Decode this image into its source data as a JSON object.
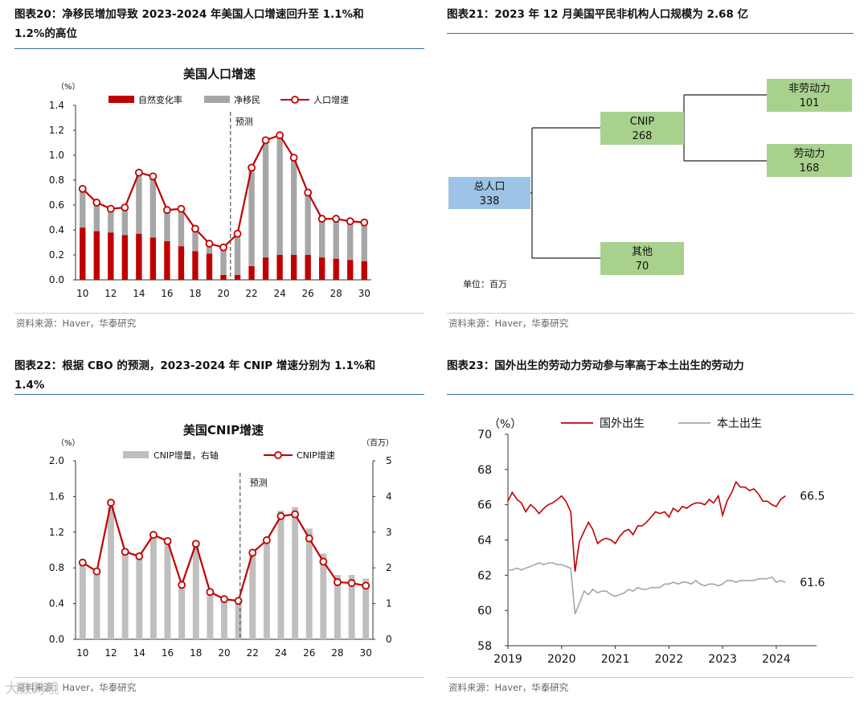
{
  "panels": {
    "p20": {
      "title_line1": "图表20：净移民增加导致 2023-2024 年美国人口增速回升至 1.1%和",
      "title_line2": "1.2%的高位",
      "source": "资料来源：Haver，华泰研究"
    },
    "p21": {
      "title_line1": "图表21：2023 年 12 月美国平民非机构人口规模为 2.68 亿",
      "source": "资料来源：Haver，华泰研究"
    },
    "p22": {
      "title_line1": "图表22：根据 CBO 的预测，2023-2024 年 CNIP 增速分别为 1.1%和",
      "title_line2": "1.4%",
      "source": "资料来源：Haver，华泰研究"
    },
    "p23": {
      "title_line1": "图表23：国外出生的劳动力劳动参与率高于本土出生的劳动力",
      "source": "资料来源：Haver，华泰研究"
    }
  },
  "watermark": "大数跨境",
  "colors": {
    "red": "#c00000",
    "gray": "#a6a6a6",
    "lightgray": "#bfbfbf",
    "blue": "#9dc3e6",
    "green": "#a9d18e",
    "rule": "#3a6ea5"
  },
  "chart_data": [
    {
      "id": "pop_growth",
      "type": "bar",
      "title": "美国人口增速",
      "ylabel": "（%）",
      "ylim": [
        0,
        1.4
      ],
      "yticks": [
        "0.0",
        "0.2",
        "0.4",
        "0.6",
        "0.8",
        "1.0",
        "1.2",
        "1.4"
      ],
      "x": [
        10,
        11,
        12,
        13,
        14,
        15,
        16,
        17,
        18,
        19,
        20,
        21,
        22,
        23,
        24,
        25,
        26,
        27,
        28,
        29,
        30
      ],
      "xticks": [
        "10",
        "12",
        "14",
        "16",
        "18",
        "20",
        "22",
        "24",
        "26",
        "28",
        "30"
      ],
      "annotation": "预测",
      "forecast_after": 20,
      "series": [
        {
          "name": "自然变化率",
          "kind": "bar_stack_bottom",
          "values": [
            0.42,
            0.39,
            0.38,
            0.36,
            0.37,
            0.34,
            0.31,
            0.27,
            0.23,
            0.21,
            0.04,
            0.04,
            0.11,
            0.18,
            0.2,
            0.2,
            0.2,
            0.18,
            0.17,
            0.16,
            0.15
          ]
        },
        {
          "name": "净移民",
          "kind": "bar_stack_top",
          "values": [
            0.31,
            0.23,
            0.19,
            0.22,
            0.49,
            0.49,
            0.25,
            0.3,
            0.18,
            0.08,
            0.22,
            0.33,
            0.79,
            0.94,
            0.96,
            0.78,
            0.5,
            0.31,
            0.32,
            0.31,
            0.31
          ]
        },
        {
          "name": "人口增速",
          "kind": "line",
          "values": [
            0.73,
            0.62,
            0.57,
            0.58,
            0.86,
            0.83,
            0.56,
            0.57,
            0.41,
            0.29,
            0.26,
            0.37,
            0.9,
            1.12,
            1.16,
            0.98,
            0.7,
            0.49,
            0.49,
            0.47,
            0.46
          ]
        }
      ]
    },
    {
      "id": "cnip_tree",
      "type": "diagram",
      "unit": "单位：百万",
      "nodes": [
        {
          "name": "总人口",
          "value": "338"
        },
        {
          "name": "CNIP",
          "value": "268"
        },
        {
          "name": "其他",
          "value": "70"
        },
        {
          "name": "非劳动力",
          "value": "101"
        },
        {
          "name": "劳动力",
          "value": "168"
        }
      ]
    },
    {
      "id": "cnip_growth",
      "type": "bar",
      "title": "美国CNIP增速",
      "ylabel": "（%）",
      "ylabel_right": "（百万）",
      "ylim": [
        0,
        2.0
      ],
      "ylim_right": [
        0,
        5
      ],
      "yticks": [
        "0.0",
        "0.4",
        "0.8",
        "1.2",
        "1.6",
        "2.0"
      ],
      "yticks_right": [
        "0",
        "1",
        "2",
        "3",
        "4",
        "5"
      ],
      "x": [
        10,
        11,
        12,
        13,
        14,
        15,
        16,
        17,
        18,
        19,
        20,
        21,
        22,
        23,
        24,
        25,
        26,
        27,
        28,
        29,
        30
      ],
      "xticks": [
        "10",
        "12",
        "14",
        "16",
        "18",
        "20",
        "22",
        "24",
        "26",
        "28",
        "30"
      ],
      "annotation": "预测",
      "forecast_after": 21,
      "series": [
        {
          "name": "CNIP增量，右轴",
          "kind": "bar_right",
          "values": [
            2.1,
            1.9,
            3.7,
            2.5,
            2.3,
            2.9,
            2.7,
            1.5,
            2.6,
            1.3,
            1.1,
            1.1,
            2.4,
            2.8,
            3.6,
            3.7,
            3.1,
            2.4,
            1.8,
            1.8,
            1.7
          ]
        },
        {
          "name": "CNIP增速",
          "kind": "line",
          "values": [
            0.86,
            0.76,
            1.53,
            0.98,
            0.93,
            1.17,
            1.1,
            0.61,
            1.07,
            0.53,
            0.45,
            0.43,
            0.97,
            1.11,
            1.38,
            1.4,
            1.13,
            0.87,
            0.64,
            0.63,
            0.6
          ]
        }
      ]
    },
    {
      "id": "lfpr",
      "type": "line",
      "ylabel": "（%）",
      "ylim": [
        58,
        70
      ],
      "yticks": [
        "58",
        "60",
        "62",
        "64",
        "66",
        "68",
        "70"
      ],
      "xlim": [
        2019,
        2024.75
      ],
      "xticks": [
        "2019",
        "2020",
        "2021",
        "2022",
        "2023",
        "2024"
      ],
      "series": [
        {
          "name": "国外出生",
          "end_label": "66.5",
          "x": [
            2019.0,
            2019.08,
            2019.17,
            2019.25,
            2019.33,
            2019.42,
            2019.5,
            2019.58,
            2019.67,
            2019.75,
            2019.83,
            2019.92,
            2020.0,
            2020.08,
            2020.17,
            2020.25,
            2020.33,
            2020.42,
            2020.5,
            2020.58,
            2020.67,
            2020.75,
            2020.83,
            2020.92,
            2021.0,
            2021.08,
            2021.17,
            2021.25,
            2021.33,
            2021.42,
            2021.5,
            2021.58,
            2021.67,
            2021.75,
            2021.83,
            2021.92,
            2022.0,
            2022.08,
            2022.17,
            2022.25,
            2022.33,
            2022.42,
            2022.5,
            2022.58,
            2022.67,
            2022.75,
            2022.83,
            2022.92,
            2023.0,
            2023.08,
            2023.17,
            2023.25,
            2023.33,
            2023.42,
            2023.5,
            2023.58,
            2023.67,
            2023.75,
            2023.83,
            2023.92,
            2024.0,
            2024.08,
            2024.17
          ],
          "values": [
            66.2,
            66.7,
            66.3,
            66.1,
            65.6,
            66.0,
            65.8,
            65.5,
            65.8,
            66.0,
            66.1,
            66.3,
            66.5,
            66.2,
            65.6,
            62.2,
            63.9,
            64.5,
            65.0,
            64.6,
            63.8,
            64.0,
            64.1,
            64.0,
            63.8,
            64.2,
            64.5,
            64.6,
            64.3,
            64.8,
            64.8,
            65.0,
            65.3,
            65.6,
            65.5,
            65.6,
            65.3,
            65.8,
            65.6,
            65.9,
            65.8,
            66.0,
            66.1,
            66.1,
            66.0,
            66.3,
            66.1,
            66.5,
            65.4,
            66.2,
            66.7,
            67.3,
            67.0,
            67.0,
            66.8,
            66.9,
            66.6,
            66.2,
            66.2,
            66.0,
            65.9,
            66.3,
            66.5
          ]
        },
        {
          "name": "本土出生",
          "end_label": "61.6",
          "x": [
            2019.0,
            2019.08,
            2019.17,
            2019.25,
            2019.33,
            2019.42,
            2019.5,
            2019.58,
            2019.67,
            2019.75,
            2019.83,
            2019.92,
            2020.0,
            2020.08,
            2020.17,
            2020.25,
            2020.33,
            2020.42,
            2020.5,
            2020.58,
            2020.67,
            2020.75,
            2020.83,
            2020.92,
            2021.0,
            2021.08,
            2021.17,
            2021.25,
            2021.33,
            2021.42,
            2021.5,
            2021.58,
            2021.67,
            2021.75,
            2021.83,
            2021.92,
            2022.0,
            2022.08,
            2022.17,
            2022.25,
            2022.33,
            2022.42,
            2022.5,
            2022.58,
            2022.67,
            2022.75,
            2022.83,
            2022.92,
            2023.0,
            2023.08,
            2023.17,
            2023.25,
            2023.33,
            2023.42,
            2023.5,
            2023.58,
            2023.67,
            2023.75,
            2023.83,
            2023.92,
            2024.0,
            2024.08,
            2024.17
          ],
          "values": [
            62.3,
            62.3,
            62.4,
            62.3,
            62.4,
            62.5,
            62.6,
            62.7,
            62.6,
            62.7,
            62.7,
            62.6,
            62.6,
            62.5,
            62.4,
            59.8,
            60.4,
            61.1,
            60.9,
            61.2,
            61.0,
            61.1,
            61.1,
            60.9,
            60.8,
            60.9,
            61.0,
            61.2,
            61.1,
            61.3,
            61.2,
            61.2,
            61.3,
            61.3,
            61.3,
            61.5,
            61.5,
            61.6,
            61.5,
            61.6,
            61.6,
            61.5,
            61.7,
            61.5,
            61.4,
            61.5,
            61.5,
            61.4,
            61.5,
            61.7,
            61.7,
            61.6,
            61.7,
            61.7,
            61.7,
            61.7,
            61.8,
            61.8,
            61.8,
            61.9,
            61.6,
            61.7,
            61.6
          ]
        }
      ]
    }
  ]
}
